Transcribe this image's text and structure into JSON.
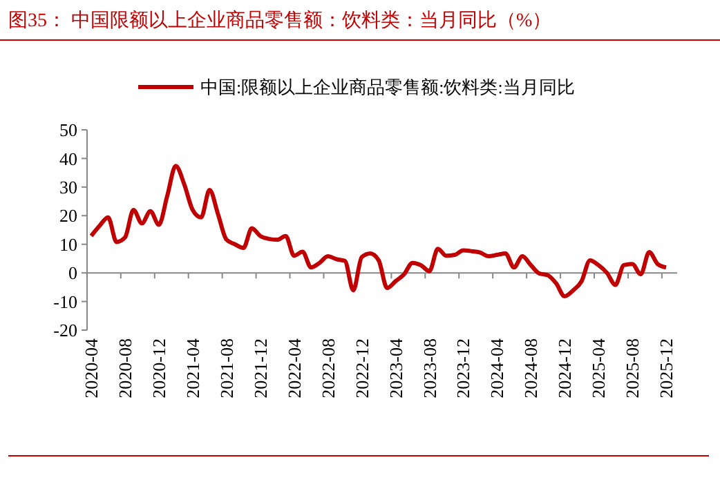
{
  "chart_data": {
    "type": "line",
    "title": "图35：  中国限额以上企业商品零售额：饮料类：当月同比（%）",
    "categories": [
      "2020-04",
      null,
      null,
      null,
      "2020-08",
      null,
      null,
      null,
      "2020-12",
      null,
      null,
      null,
      "2021-04",
      null,
      null,
      null,
      "2021-08",
      null,
      null,
      null,
      "2021-12",
      null,
      null,
      null,
      "2022-04",
      null,
      null,
      null,
      "2022-08",
      null,
      null,
      null,
      "2022-12",
      null,
      null,
      null,
      "2023-04",
      null,
      null,
      null,
      "2023-08",
      null,
      null,
      null,
      "2023-12",
      null,
      null,
      null,
      "2024-04",
      null,
      null,
      null,
      "2024-08",
      null,
      null,
      null,
      "2024-12",
      null,
      null,
      null,
      "2025-04",
      null,
      null,
      null,
      "2025-08",
      null,
      null,
      null,
      "2025-12"
    ],
    "series": [
      {
        "name": "中国:限额以上企业商品零售额:饮料类:当月同比",
        "color": "#c00000",
        "values": [
          12.9,
          16.5,
          19.4,
          10.8,
          12.4,
          22,
          17.3,
          21.6,
          16.8,
          27,
          37.4,
          31,
          22,
          19.4,
          29,
          20.5,
          11.6,
          10,
          8.7,
          15.6,
          12.9,
          11.9,
          11.6,
          12.9,
          6,
          7.4,
          1.9,
          3.5,
          5.8,
          4.8,
          4.2,
          -6.1,
          5.5,
          6.8,
          4.4,
          -5.3,
          -2.9,
          -0.5,
          3.5,
          2.7,
          0.6,
          8.4,
          6,
          6.3,
          7.9,
          7.6,
          7.1,
          5.8,
          6.3,
          6.8,
          1.9,
          5.8,
          2.7,
          -0.2,
          -0.8,
          -3.7,
          -8.2,
          -6.1,
          -2.9,
          4.4,
          2.7,
          0,
          -4.2,
          2.7,
          3.1,
          -0.5,
          7.3,
          3.1,
          1.9
        ]
      }
    ],
    "ylim": [
      -20,
      50
    ],
    "yticks": [
      -20,
      -10,
      0,
      10,
      20,
      30,
      40,
      50
    ],
    "legend": "top",
    "marker": "none",
    "line_style": "solid"
  }
}
